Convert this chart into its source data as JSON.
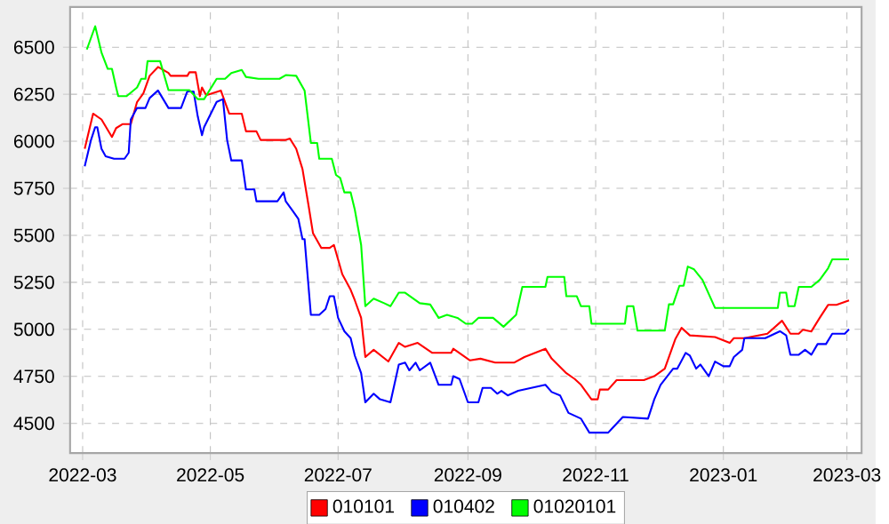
{
  "chart_data": {
    "type": "line",
    "xlim": [
      "2022-02-23",
      "2023-03-08"
    ],
    "xticks": [
      "2022-03",
      "2022-05",
      "2022-07",
      "2022-09",
      "2022-11",
      "2023-01",
      "2023-03"
    ],
    "ylim": [
      4342,
      6714
    ],
    "yticks": [
      4500,
      4750,
      5000,
      5250,
      5500,
      5750,
      6000,
      6250,
      6500
    ],
    "grid": true,
    "legend": "bottom",
    "marker": "none",
    "line_style": "solid",
    "series": [
      {
        "name": "010101",
        "color": "#ff0000",
        "x": [
          "2022-03-02",
          "2022-03-06",
          "2022-03-10",
          "2022-03-15",
          "2022-03-17",
          "2022-03-20",
          "2022-03-24",
          "2022-03-27",
          "2022-03-30",
          "2022-04-02",
          "2022-04-06",
          "2022-04-11",
          "2022-04-12",
          "2022-04-20",
          "2022-04-21",
          "2022-04-24",
          "2022-04-26",
          "2022-04-27",
          "2022-04-29",
          "2022-05-06",
          "2022-05-10",
          "2022-05-16",
          "2022-05-18",
          "2022-05-23",
          "2022-05-25",
          "2022-06-06",
          "2022-06-08",
          "2022-06-11",
          "2022-06-14",
          "2022-06-17",
          "2022-06-19",
          "2022-06-23",
          "2022-06-27",
          "2022-06-29",
          "2022-07-03",
          "2022-07-07",
          "2022-07-09",
          "2022-07-12",
          "2022-07-14",
          "2022-07-18",
          "2022-07-25",
          "2022-07-30",
          "2022-08-02",
          "2022-08-08",
          "2022-08-15",
          "2022-08-24",
          "2022-08-25",
          "2022-09-02",
          "2022-09-07",
          "2022-09-14",
          "2022-09-23",
          "2022-09-28",
          "2022-10-08",
          "2022-10-11",
          "2022-10-18",
          "2022-10-22",
          "2022-10-25",
          "2022-10-30",
          "2022-11-02",
          "2022-11-03",
          "2022-11-07",
          "2022-11-11",
          "2022-11-24",
          "2022-11-29",
          "2022-12-04",
          "2022-12-09",
          "2022-12-12",
          "2022-12-16",
          "2022-12-28",
          "2023-01-04",
          "2023-01-06",
          "2023-01-11",
          "2023-01-22",
          "2023-01-29",
          "2023-02-02",
          "2023-02-06",
          "2023-02-08",
          "2023-02-12",
          "2023-02-16",
          "2023-02-20",
          "2023-02-24",
          "2023-03-02"
        ],
        "values": [
          5960,
          6147,
          6116,
          6023,
          6070,
          6091,
          6091,
          6209,
          6255,
          6348,
          6395,
          6363,
          6348,
          6348,
          6367,
          6367,
          6240,
          6286,
          6245,
          6270,
          6147,
          6147,
          6053,
          6053,
          6007,
          6007,
          6014,
          5960,
          5852,
          5651,
          5512,
          5433,
          5433,
          5449,
          5293,
          5210,
          5154,
          5061,
          4853,
          4891,
          4829,
          4928,
          4907,
          4928,
          4875,
          4875,
          4897,
          4835,
          4844,
          4823,
          4823,
          4853,
          4897,
          4844,
          4767,
          4736,
          4705,
          4628,
          4628,
          4680,
          4680,
          4730,
          4730,
          4751,
          4791,
          4947,
          5008,
          4968,
          4959,
          4928,
          4953,
          4953,
          4977,
          5046,
          4977,
          4977,
          4998,
          4989,
          5061,
          5130,
          5130,
          5154
        ]
      },
      {
        "name": "010402",
        "color": "#0000ff",
        "x": [
          "2022-03-02",
          "2022-03-05",
          "2022-03-07",
          "2022-03-08",
          "2022-03-10",
          "2022-03-12",
          "2022-03-16",
          "2022-03-21",
          "2022-03-23",
          "2022-03-24",
          "2022-03-27",
          "2022-03-31",
          "2022-04-02",
          "2022-04-06",
          "2022-04-11",
          "2022-04-17",
          "2022-04-20",
          "2022-04-23",
          "2022-04-25",
          "2022-04-27",
          "2022-04-28",
          "2022-05-04",
          "2022-05-07",
          "2022-05-09",
          "2022-05-11",
          "2022-05-16",
          "2022-05-18",
          "2022-05-22",
          "2022-05-23",
          "2022-06-02",
          "2022-06-05",
          "2022-06-06",
          "2022-06-09",
          "2022-06-12",
          "2022-06-14",
          "2022-06-15",
          "2022-06-18",
          "2022-06-22",
          "2022-06-25",
          "2022-06-27",
          "2022-06-29",
          "2022-07-01",
          "2022-07-04",
          "2022-07-07",
          "2022-07-09",
          "2022-07-12",
          "2022-07-14",
          "2022-07-18",
          "2022-07-21",
          "2022-07-26",
          "2022-07-30",
          "2022-08-02",
          "2022-08-04",
          "2022-08-07",
          "2022-08-09",
          "2022-08-14",
          "2022-08-18",
          "2022-08-24",
          "2022-08-25",
          "2022-08-28",
          "2022-09-01",
          "2022-09-06",
          "2022-09-08",
          "2022-09-12",
          "2022-09-15",
          "2022-09-17",
          "2022-09-20",
          "2022-09-25",
          "2022-10-08",
          "2022-10-11",
          "2022-10-15",
          "2022-10-19",
          "2022-10-25",
          "2022-10-29",
          "2022-11-07",
          "2022-11-09",
          "2022-11-14",
          "2022-11-26",
          "2022-11-29",
          "2022-12-02",
          "2022-12-08",
          "2022-12-10",
          "2022-12-14",
          "2022-12-16",
          "2022-12-19",
          "2022-12-21",
          "2022-12-25",
          "2022-12-28",
          "2023-01-01",
          "2023-01-04",
          "2023-01-06",
          "2023-01-10",
          "2023-01-11",
          "2023-01-21",
          "2023-01-28",
          "2023-01-31",
          "2023-02-02",
          "2023-02-06",
          "2023-02-09",
          "2023-02-12",
          "2023-02-15",
          "2023-02-19",
          "2023-02-22",
          "2023-02-28",
          "2023-03-02"
        ],
        "values": [
          5867,
          6007,
          6075,
          6075,
          5960,
          5920,
          5907,
          5907,
          5939,
          6116,
          6177,
          6177,
          6230,
          6270,
          6177,
          6177,
          6265,
          6265,
          6131,
          6032,
          6075,
          6209,
          6224,
          6007,
          5898,
          5898,
          5744,
          5744,
          5681,
          5681,
          5728,
          5681,
          5635,
          5588,
          5480,
          5480,
          5077,
          5077,
          5108,
          5176,
          5176,
          5061,
          4990,
          4953,
          4860,
          4767,
          4612,
          4658,
          4628,
          4612,
          4813,
          4823,
          4782,
          4823,
          4782,
          4823,
          4705,
          4705,
          4751,
          4736,
          4612,
          4612,
          4689,
          4689,
          4658,
          4673,
          4649,
          4673,
          4705,
          4667,
          4649,
          4556,
          4525,
          4451,
          4451,
          4475,
          4534,
          4525,
          4628,
          4705,
          4791,
          4791,
          4875,
          4860,
          4791,
          4813,
          4751,
          4829,
          4804,
          4804,
          4853,
          4891,
          4953,
          4953,
          4990,
          4968,
          4865,
          4865,
          4891,
          4865,
          4922,
          4922,
          4977,
          4977,
          5000
        ]
      },
      {
        "name": "01020101",
        "color": "#00ff00",
        "x": [
          "2022-03-03",
          "2022-03-07",
          "2022-03-10",
          "2022-03-13",
          "2022-03-15",
          "2022-03-17",
          "2022-03-18",
          "2022-03-22",
          "2022-03-27",
          "2022-03-29",
          "2022-03-31",
          "2022-04-01",
          "2022-04-07",
          "2022-04-11",
          "2022-04-21",
          "2022-04-25",
          "2022-04-28",
          "2022-05-04",
          "2022-05-08",
          "2022-05-11",
          "2022-05-16",
          "2022-05-18",
          "2022-05-24",
          "2022-06-03",
          "2022-06-06",
          "2022-06-11",
          "2022-06-15",
          "2022-06-18",
          "2022-06-21",
          "2022-06-22",
          "2022-06-28",
          "2022-06-30",
          "2022-07-02",
          "2022-07-04",
          "2022-07-07",
          "2022-07-09",
          "2022-07-12",
          "2022-07-14",
          "2022-07-18",
          "2022-07-23",
          "2022-07-26",
          "2022-07-30",
          "2022-08-02",
          "2022-08-09",
          "2022-08-14",
          "2022-08-18",
          "2022-08-22",
          "2022-08-27",
          "2022-08-31",
          "2022-09-03",
          "2022-09-06",
          "2022-09-13",
          "2022-09-18",
          "2022-09-24",
          "2022-09-27",
          "2022-10-08",
          "2022-10-09",
          "2022-10-17",
          "2022-10-18",
          "2022-10-23",
          "2022-10-25",
          "2022-10-29",
          "2022-10-30",
          "2022-11-15",
          "2022-11-16",
          "2022-11-19",
          "2022-11-21",
          "2022-12-04",
          "2022-12-06",
          "2022-12-08",
          "2022-12-11",
          "2022-12-13",
          "2022-12-15",
          "2022-12-18",
          "2022-12-22",
          "2022-12-28",
          "2023-01-27",
          "2023-01-28",
          "2023-01-31",
          "2023-02-01",
          "2023-02-04",
          "2023-02-06",
          "2023-02-12",
          "2023-02-16",
          "2023-02-20",
          "2023-02-22",
          "2023-03-02"
        ],
        "values": [
          6488,
          6612,
          6472,
          6385,
          6385,
          6286,
          6240,
          6240,
          6286,
          6332,
          6332,
          6426,
          6426,
          6272,
          6272,
          6224,
          6224,
          6332,
          6332,
          6363,
          6379,
          6342,
          6332,
          6332,
          6352,
          6348,
          6270,
          5991,
          5991,
          5907,
          5907,
          5821,
          5805,
          5728,
          5728,
          5635,
          5449,
          5123,
          5163,
          5139,
          5123,
          5195,
          5195,
          5139,
          5132,
          5061,
          5077,
          5061,
          5030,
          5030,
          5061,
          5061,
          5014,
          5077,
          5226,
          5226,
          5279,
          5279,
          5176,
          5176,
          5123,
          5123,
          5030,
          5030,
          5123,
          5123,
          4993,
          4993,
          5133,
          5133,
          5232,
          5232,
          5334,
          5319,
          5263,
          5114,
          5114,
          5195,
          5195,
          5123,
          5123,
          5226,
          5226,
          5263,
          5325,
          5372,
          5372
        ]
      }
    ]
  }
}
